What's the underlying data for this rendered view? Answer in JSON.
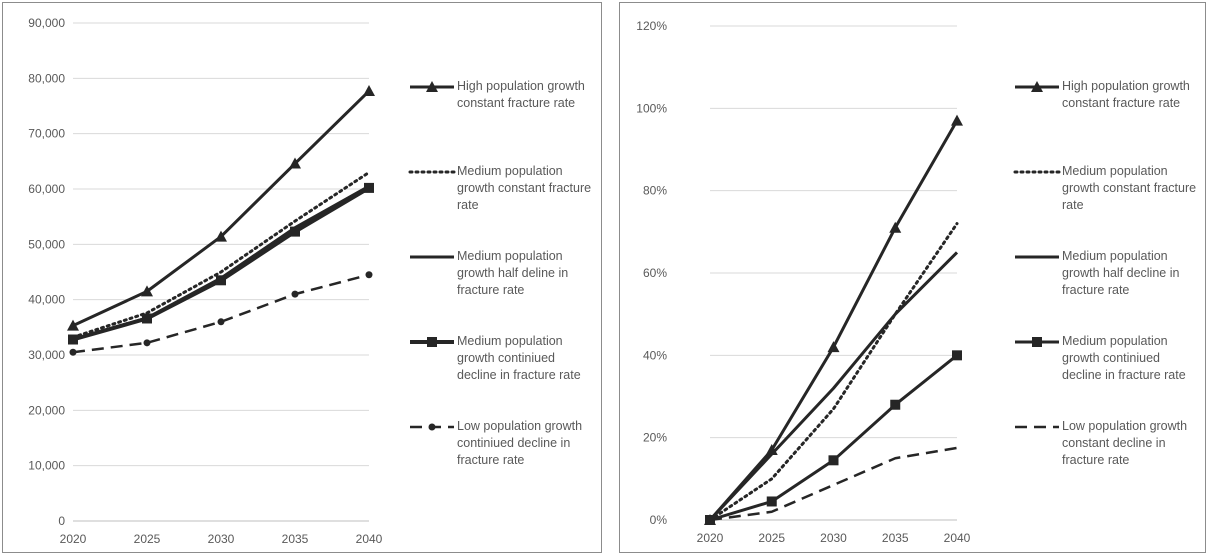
{
  "chart_data": [
    {
      "type": "line",
      "x": [
        2020,
        2025,
        2030,
        2035,
        2040
      ],
      "ylim": [
        0,
        90000
      ],
      "yticks": [
        0,
        10000,
        20000,
        30000,
        40000,
        50000,
        60000,
        70000,
        80000,
        90000
      ],
      "ytick_labels": [
        "0",
        "10,000",
        "20,000",
        "30,000",
        "40,000",
        "50,000",
        "60,000",
        "70,000",
        "80,000",
        "90,000"
      ],
      "xtick_labels": [
        "2020",
        "2025",
        "2030",
        "2035",
        "2040"
      ],
      "grid": true,
      "legend_position": "right",
      "series": [
        {
          "name": "High population growth constant fracture rate",
          "values": [
            35300,
            41500,
            51400,
            64600,
            77700
          ],
          "style": "solid",
          "marker": "triangle",
          "width": 3
        },
        {
          "name": "Medium population growth constant fracture rate",
          "values": [
            33200,
            37600,
            45000,
            54200,
            63000
          ],
          "style": "dotted",
          "marker": "none",
          "width": 3
        },
        {
          "name": "Medium population growth half deline in fracture rate",
          "values": [
            32800,
            36700,
            43900,
            53000,
            60500
          ],
          "style": "solid",
          "marker": "none",
          "width": 3
        },
        {
          "name": "Medium population growth continiued decline in fracture rate",
          "values": [
            32800,
            36600,
            43500,
            52300,
            60200
          ],
          "style": "solid",
          "marker": "square",
          "width": 4
        },
        {
          "name": "Low population growth continiued decline in fracture rate",
          "values": [
            30500,
            32200,
            36000,
            41000,
            44500
          ],
          "style": "dashed",
          "marker": "circle",
          "width": 2.5
        }
      ]
    },
    {
      "type": "line",
      "x": [
        2020,
        2025,
        2030,
        2035,
        2040
      ],
      "ylim": [
        0,
        1.2
      ],
      "yticks": [
        0,
        0.2,
        0.4,
        0.6,
        0.8,
        1.0,
        1.2
      ],
      "ytick_labels": [
        "0%",
        "20%",
        "40%",
        "60%",
        "80%",
        "100%",
        "120%"
      ],
      "xtick_labels": [
        "2020",
        "2025",
        "2030",
        "2035",
        "2040"
      ],
      "grid": true,
      "legend_position": "right",
      "series": [
        {
          "name": "High population growth constant fracture rate",
          "values": [
            0,
            0.17,
            0.42,
            0.71,
            0.97
          ],
          "style": "solid",
          "marker": "triangle",
          "width": 3
        },
        {
          "name": "Medium population growth constant fracture rate",
          "values": [
            0,
            0.1,
            0.27,
            0.5,
            0.72
          ],
          "style": "dotted",
          "marker": "none",
          "width": 3
        },
        {
          "name": "Medium population growth half decline in fracture rate",
          "values": [
            0,
            0.16,
            0.32,
            0.5,
            0.65
          ],
          "style": "solid",
          "marker": "none",
          "width": 3
        },
        {
          "name": "Medium population growth continiued decline in fracture rate",
          "values": [
            0,
            0.045,
            0.145,
            0.28,
            0.4
          ],
          "style": "solid",
          "marker": "square",
          "width": 3
        },
        {
          "name": "Low population growth constant decline in fracture rate",
          "values": [
            0,
            0.02,
            0.085,
            0.15,
            0.175
          ],
          "style": "dashed",
          "marker": "none",
          "width": 2.5
        }
      ]
    }
  ]
}
